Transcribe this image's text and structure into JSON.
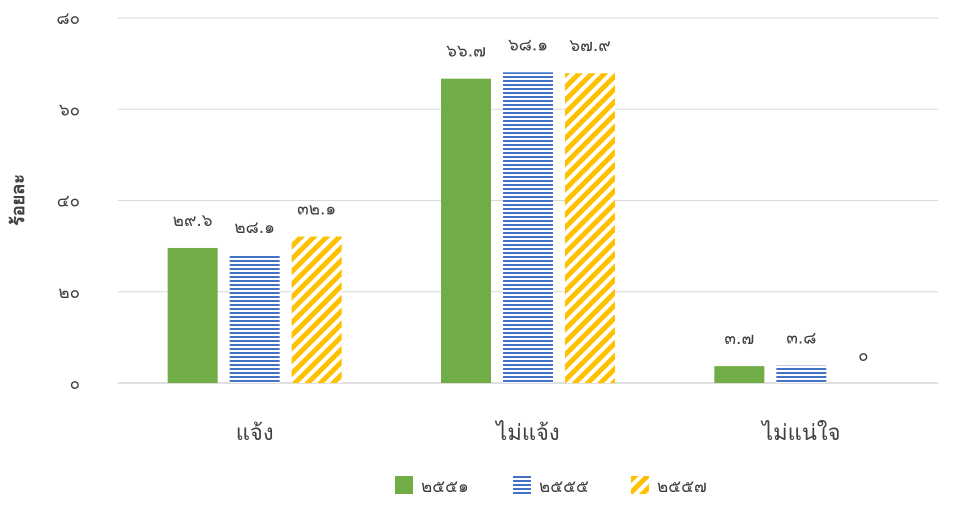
{
  "chart_data": {
    "type": "bar",
    "title": "",
    "xlabel": "",
    "ylabel": "ร้อยละ",
    "ylim": [
      0,
      80
    ],
    "yticks": [
      0,
      20,
      40,
      60,
      80
    ],
    "ytick_labels": [
      "๐",
      "๒๐",
      "๔๐",
      "๖๐",
      "๘๐"
    ],
    "grid": true,
    "legend_position": "bottom",
    "categories": [
      "แจ้ง",
      "ไม่แจ้ง",
      "ไม่แน่ใจ"
    ],
    "series": [
      {
        "name": "๒๕๕๑",
        "color": "#70ad47",
        "pattern": "solid",
        "values": [
          29.6,
          66.7,
          3.7
        ],
        "labels": [
          "๒๙.๖",
          "๖๖.๗",
          "๓.๗"
        ]
      },
      {
        "name": "๒๕๕๕",
        "color": "#4472c4",
        "pattern": "horizontal-stripes",
        "values": [
          28.1,
          68.1,
          3.8
        ],
        "labels": [
          "๒๘.๑",
          "๖๘.๑",
          "๓.๘"
        ]
      },
      {
        "name": "๒๕๕๗",
        "color": "#ffc000",
        "pattern": "diagonal-stripes",
        "values": [
          32.1,
          67.9,
          0
        ],
        "labels": [
          "๓๒.๑",
          "๖๗.๙",
          "๐"
        ]
      }
    ]
  }
}
